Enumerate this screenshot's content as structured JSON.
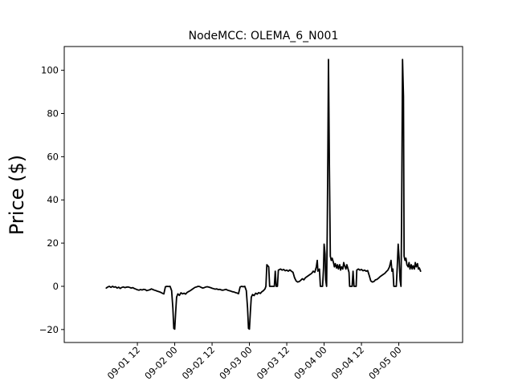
{
  "chart_data": {
    "type": "line",
    "title": "NodeMCC: OLEMA_6_N001",
    "xlabel": "",
    "ylabel": "Price ($)",
    "x_unit": "hours since 2021-09-01 00:00",
    "xlim": [
      -11.5,
      116.5
    ],
    "ylim": [
      -26,
      111
    ],
    "x_ticks": [
      {
        "x": 12,
        "label": "09-01 12"
      },
      {
        "x": 24,
        "label": "09-02 00"
      },
      {
        "x": 36,
        "label": "09-02 12"
      },
      {
        "x": 48,
        "label": "09-03 00"
      },
      {
        "x": 60,
        "label": "09-03 12"
      },
      {
        "x": 72,
        "label": "09-04 00"
      },
      {
        "x": 84,
        "label": "09-04 12"
      },
      {
        "x": 96,
        "label": "09-05 00"
      }
    ],
    "y_ticks": [
      {
        "y": -20,
        "label": "−20"
      },
      {
        "y": 0,
        "label": "0"
      },
      {
        "y": 20,
        "label": "20"
      },
      {
        "y": 40,
        "label": "40"
      },
      {
        "y": 60,
        "label": "60"
      },
      {
        "y": 80,
        "label": "80"
      },
      {
        "y": 100,
        "label": "100"
      }
    ],
    "series": [
      {
        "color": "#000000",
        "points": [
          [
            2.0,
            -0.8
          ],
          [
            2.5,
            -0.3
          ],
          [
            3.0,
            0.0
          ],
          [
            3.5,
            -0.5
          ],
          [
            4.0,
            0.0
          ],
          [
            4.5,
            -0.4
          ],
          [
            5.0,
            -0.2
          ],
          [
            5.5,
            -0.8
          ],
          [
            6.0,
            -0.4
          ],
          [
            6.5,
            -1.0
          ],
          [
            7.0,
            -0.5
          ],
          [
            7.5,
            -0.3
          ],
          [
            8.0,
            -0.6
          ],
          [
            8.5,
            -0.4
          ],
          [
            9.0,
            -0.3
          ],
          [
            9.5,
            -0.5
          ],
          [
            10.0,
            -0.8
          ],
          [
            10.5,
            -0.6
          ],
          [
            11.0,
            -1.0
          ],
          [
            11.5,
            -1.3
          ],
          [
            12.0,
            -1.6
          ],
          [
            12.5,
            -1.8
          ],
          [
            13.0,
            -1.5
          ],
          [
            13.5,
            -1.7
          ],
          [
            14.0,
            -1.4
          ],
          [
            14.5,
            -1.5
          ],
          [
            15.0,
            -2.0
          ],
          [
            15.5,
            -1.8
          ],
          [
            16.0,
            -1.6
          ],
          [
            16.5,
            -1.2
          ],
          [
            17.0,
            -1.5
          ],
          [
            17.5,
            -1.8
          ],
          [
            18.0,
            -2.0
          ],
          [
            18.5,
            -2.3
          ],
          [
            19.0,
            -2.5
          ],
          [
            19.5,
            -2.8
          ],
          [
            20.0,
            -3.2
          ],
          [
            20.5,
            -3.5
          ],
          [
            21.0,
            -0.2
          ],
          [
            21.5,
            0.0
          ],
          [
            22.0,
            -0.1
          ],
          [
            22.5,
            0.0
          ],
          [
            23.0,
            -2.0
          ],
          [
            23.4,
            -10.0
          ],
          [
            23.7,
            -19.5
          ],
          [
            24.0,
            -19.8
          ],
          [
            24.3,
            -12.0
          ],
          [
            24.6,
            -5.0
          ],
          [
            25.0,
            -3.5
          ],
          [
            25.5,
            -4.2
          ],
          [
            26.0,
            -3.0
          ],
          [
            26.5,
            -3.5
          ],
          [
            27.0,
            -3.2
          ],
          [
            27.5,
            -3.6
          ],
          [
            28.0,
            -2.8
          ],
          [
            28.5,
            -2.4
          ],
          [
            29.0,
            -2.0
          ],
          [
            29.5,
            -1.5
          ],
          [
            30.0,
            -1.0
          ],
          [
            30.5,
            -0.5
          ],
          [
            31.0,
            -0.3
          ],
          [
            31.5,
            0.0
          ],
          [
            32.0,
            -0.1
          ],
          [
            32.5,
            -0.5
          ],
          [
            33.0,
            -0.8
          ],
          [
            33.5,
            -0.6
          ],
          [
            34.0,
            -0.3
          ],
          [
            34.5,
            -0.2
          ],
          [
            35.0,
            -0.4
          ],
          [
            35.5,
            -0.6
          ],
          [
            36.0,
            -0.9
          ],
          [
            36.5,
            -1.1
          ],
          [
            37.0,
            -1.3
          ],
          [
            37.5,
            -1.2
          ],
          [
            38.0,
            -1.5
          ],
          [
            38.5,
            -1.4
          ],
          [
            39.0,
            -1.7
          ],
          [
            39.5,
            -1.8
          ],
          [
            40.0,
            -1.6
          ],
          [
            40.5,
            -1.4
          ],
          [
            41.0,
            -1.8
          ],
          [
            41.5,
            -2.0
          ],
          [
            42.0,
            -2.2
          ],
          [
            42.5,
            -2.5
          ],
          [
            43.0,
            -2.6
          ],
          [
            43.5,
            -2.9
          ],
          [
            44.0,
            -3.1
          ],
          [
            44.5,
            -3.4
          ],
          [
            45.0,
            -0.3
          ],
          [
            45.5,
            0.0
          ],
          [
            46.0,
            -0.2
          ],
          [
            46.5,
            0.0
          ],
          [
            47.0,
            -2.0
          ],
          [
            47.4,
            -10.0
          ],
          [
            47.7,
            -19.5
          ],
          [
            48.0,
            -19.8
          ],
          [
            48.3,
            -12.0
          ],
          [
            48.6,
            -5.0
          ],
          [
            49.0,
            -3.8
          ],
          [
            49.5,
            -4.3
          ],
          [
            50.0,
            -3.2
          ],
          [
            50.5,
            -3.6
          ],
          [
            51.0,
            -2.9
          ],
          [
            51.5,
            -3.3
          ],
          [
            52.0,
            -2.5
          ],
          [
            52.5,
            -2.0
          ],
          [
            53.0,
            -1.2
          ],
          [
            53.3,
            0.0
          ],
          [
            53.6,
            10.0
          ],
          [
            54.2,
            9.0
          ],
          [
            54.5,
            0.0
          ],
          [
            56.0,
            0.0
          ],
          [
            56.3,
            7.0
          ],
          [
            56.6,
            0.0
          ],
          [
            57.0,
            0.0
          ],
          [
            57.3,
            7.5
          ],
          [
            58.0,
            8.0
          ],
          [
            58.5,
            7.5
          ],
          [
            59.0,
            7.8
          ],
          [
            59.5,
            7.2
          ],
          [
            60.0,
            7.5
          ],
          [
            60.5,
            7.0
          ],
          [
            61.0,
            7.6
          ],
          [
            61.5,
            7.0
          ],
          [
            62.0,
            6.5
          ],
          [
            62.5,
            4.0
          ],
          [
            63.0,
            2.5
          ],
          [
            63.5,
            2.0
          ],
          [
            64.0,
            2.2
          ],
          [
            64.5,
            2.8
          ],
          [
            65.0,
            3.5
          ],
          [
            65.5,
            3.0
          ],
          [
            66.0,
            4.0
          ],
          [
            66.5,
            4.5
          ],
          [
            67.0,
            5.0
          ],
          [
            67.5,
            5.5
          ],
          [
            68.0,
            6.0
          ],
          [
            68.5,
            7.0
          ],
          [
            69.0,
            6.5
          ],
          [
            69.5,
            9.0
          ],
          [
            69.8,
            12.0
          ],
          [
            70.0,
            7.0
          ],
          [
            70.5,
            8.0
          ],
          [
            70.8,
            0.0
          ],
          [
            71.5,
            0.0
          ],
          [
            71.8,
            8.0
          ],
          [
            72.0,
            19.5
          ],
          [
            72.3,
            15.0
          ],
          [
            72.5,
            3.0
          ],
          [
            72.8,
            0.0
          ],
          [
            73.0,
            25.0
          ],
          [
            73.2,
            60.0
          ],
          [
            73.4,
            105.0
          ],
          [
            73.7,
            55.0
          ],
          [
            74.0,
            14.0
          ],
          [
            74.3,
            12.0
          ],
          [
            74.6,
            13.0
          ],
          [
            75.0,
            11.0
          ],
          [
            75.3,
            9.0
          ],
          [
            75.6,
            10.5
          ],
          [
            76.0,
            8.5
          ],
          [
            76.3,
            10.0
          ],
          [
            76.6,
            8.0
          ],
          [
            77.0,
            10.0
          ],
          [
            77.3,
            7.5
          ],
          [
            77.6,
            9.0
          ],
          [
            78.0,
            8.0
          ],
          [
            78.3,
            11.0
          ],
          [
            78.6,
            9.5
          ],
          [
            79.0,
            8.0
          ],
          [
            79.3,
            10.0
          ],
          [
            79.6,
            8.5
          ],
          [
            80.0,
            6.5
          ],
          [
            80.2,
            0.0
          ],
          [
            81.0,
            0.0
          ],
          [
            81.3,
            7.0
          ],
          [
            81.6,
            0.0
          ],
          [
            82.3,
            0.0
          ],
          [
            82.5,
            7.5
          ],
          [
            83.0,
            8.0
          ],
          [
            83.5,
            7.5
          ],
          [
            84.0,
            7.8
          ],
          [
            84.5,
            7.2
          ],
          [
            85.0,
            7.5
          ],
          [
            85.5,
            7.0
          ],
          [
            86.0,
            7.3
          ],
          [
            86.5,
            5.0
          ],
          [
            87.0,
            2.5
          ],
          [
            87.5,
            2.0
          ],
          [
            88.0,
            2.2
          ],
          [
            88.5,
            3.0
          ],
          [
            89.0,
            3.2
          ],
          [
            89.5,
            3.8
          ],
          [
            90.0,
            4.5
          ],
          [
            90.5,
            5.0
          ],
          [
            91.0,
            5.5
          ],
          [
            91.5,
            6.0
          ],
          [
            92.0,
            6.8
          ],
          [
            92.5,
            7.5
          ],
          [
            93.0,
            9.0
          ],
          [
            93.5,
            12.0
          ],
          [
            93.8,
            7.0
          ],
          [
            94.1,
            8.0
          ],
          [
            94.4,
            0.0
          ],
          [
            95.2,
            0.0
          ],
          [
            95.5,
            9.0
          ],
          [
            95.8,
            19.5
          ],
          [
            96.1,
            13.0
          ],
          [
            96.4,
            3.0
          ],
          [
            96.7,
            0.0
          ],
          [
            96.9,
            30.0
          ],
          [
            97.2,
            105.0
          ],
          [
            97.5,
            88.0
          ],
          [
            97.7,
            14.0
          ],
          [
            98.0,
            12.0
          ],
          [
            98.3,
            13.0
          ],
          [
            98.6,
            10.0
          ],
          [
            99.0,
            9.0
          ],
          [
            99.3,
            11.0
          ],
          [
            99.6,
            8.0
          ],
          [
            100.0,
            10.0
          ],
          [
            100.3,
            8.0
          ],
          [
            100.6,
            9.5
          ],
          [
            101.0,
            8.0
          ],
          [
            101.3,
            11.0
          ],
          [
            101.6,
            9.0
          ],
          [
            102.0,
            10.5
          ],
          [
            102.3,
            8.0
          ],
          [
            102.6,
            8.5
          ],
          [
            103.0,
            7.0
          ]
        ]
      }
    ]
  }
}
